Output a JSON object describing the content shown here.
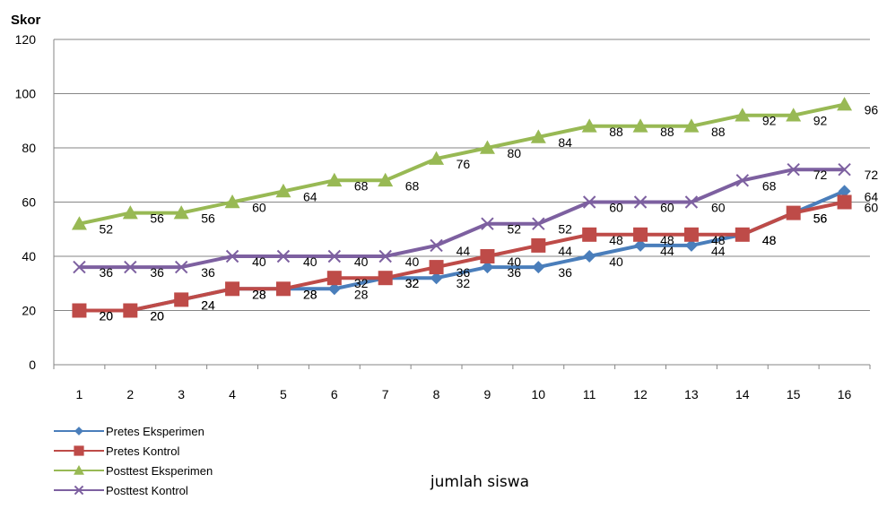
{
  "chart_data": {
    "type": "line",
    "ylabel": "Skor",
    "xlabel": "jumlah siswa",
    "ylim": [
      0,
      120
    ],
    "yticks": [
      0,
      20,
      40,
      60,
      80,
      100,
      120
    ],
    "categories": [
      "1",
      "2",
      "3",
      "4",
      "5",
      "6",
      "7",
      "8",
      "9",
      "10",
      "11",
      "12",
      "13",
      "14",
      "15",
      "16"
    ],
    "grid": "horizontal",
    "legend_position": "bottom-left",
    "series": [
      {
        "name": "Pretes Eksperimen",
        "color": "#4a7ebb",
        "marker": "diamond",
        "values": [
          20,
          20,
          24,
          28,
          28,
          28,
          32,
          32,
          36,
          36,
          40,
          44,
          44,
          48,
          56,
          64
        ]
      },
      {
        "name": "Pretes Kontrol",
        "color": "#be4b48",
        "marker": "square",
        "values": [
          20,
          20,
          24,
          28,
          28,
          32,
          32,
          36,
          40,
          44,
          48,
          48,
          48,
          48,
          56,
          60
        ]
      },
      {
        "name": "Posttest Eksperimen",
        "color": "#98b954",
        "marker": "triangle",
        "values": [
          52,
          56,
          56,
          60,
          64,
          68,
          68,
          76,
          80,
          84,
          88,
          88,
          88,
          92,
          92,
          96
        ]
      },
      {
        "name": "Posttest Kontrol",
        "color": "#7d60a0",
        "marker": "x",
        "values": [
          36,
          36,
          36,
          40,
          40,
          40,
          40,
          44,
          52,
          52,
          60,
          60,
          60,
          68,
          72,
          72
        ]
      }
    ],
    "data_labels": [
      [
        "20",
        "20",
        "24",
        "28",
        "28",
        "28",
        "32",
        "32",
        "36",
        "36",
        "40",
        "44",
        "44",
        "48",
        "56",
        "64"
      ],
      [
        "20",
        "20",
        "24",
        "28",
        "28",
        "32",
        "32",
        "36",
        "40",
        "44",
        "48",
        "48",
        "48",
        "48",
        "56",
        "60"
      ],
      [
        "52",
        "56",
        "56",
        "60",
        "64",
        "68",
        "68",
        "76",
        "80",
        "84",
        "88",
        "88",
        "88",
        "92",
        "92",
        "96"
      ],
      [
        "36",
        "36",
        "36",
        "40",
        "40",
        "40",
        "40",
        "44",
        "52",
        "52",
        "60",
        "60",
        "60",
        "68",
        "72",
        "72"
      ]
    ]
  }
}
